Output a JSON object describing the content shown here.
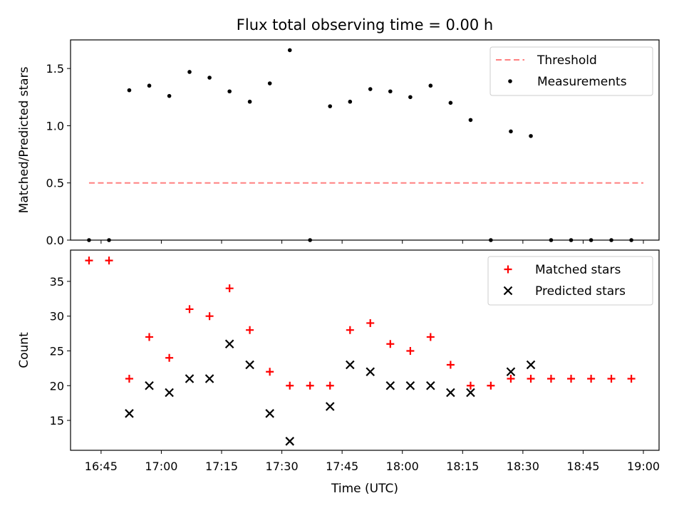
{
  "figure": {
    "title": "Flux total observing time = 0.00 h",
    "xlabel": "Time (UTC)"
  },
  "chart_data": [
    {
      "type": "scatter",
      "ylabel": "Matched/Predicted stars",
      "xlim": [
        16.6233,
        19.065
      ],
      "ylim": [
        0,
        1.75
      ],
      "yticks": [
        0.0,
        0.5,
        1.0,
        1.5
      ],
      "ytick_labels": [
        "0.0",
        "0.5",
        "1.0",
        "1.5"
      ],
      "legend_position": "top-right",
      "series": [
        {
          "name": "Threshold",
          "kind": "line",
          "color": "#ff8080",
          "style": "dashed",
          "x": [
            16.7,
            19.0
          ],
          "y": [
            0.5,
            0.5
          ]
        },
        {
          "name": "Measurements",
          "kind": "points",
          "color": "#000000",
          "x": [
            16.7,
            16.783,
            16.867,
            16.95,
            17.033,
            17.117,
            17.2,
            17.283,
            17.367,
            17.45,
            17.533,
            17.617,
            17.7,
            17.783,
            17.867,
            17.95,
            18.033,
            18.117,
            18.2,
            18.283,
            18.367,
            18.45,
            18.533,
            18.617,
            18.7,
            18.783,
            18.867,
            18.95
          ],
          "y": [
            0,
            0,
            1.31,
            1.35,
            1.26,
            1.47,
            1.42,
            1.3,
            1.21,
            1.37,
            1.66,
            0,
            1.17,
            1.21,
            1.32,
            1.3,
            1.25,
            1.35,
            1.2,
            1.05,
            0,
            0.95,
            0.91,
            0,
            0,
            0,
            0,
            0
          ]
        }
      ]
    },
    {
      "type": "scatter",
      "ylabel": "Count",
      "xlim": [
        16.6233,
        19.065
      ],
      "ylim": [
        10.7,
        39.5
      ],
      "yticks": [
        15,
        20,
        25,
        30,
        35
      ],
      "ytick_labels": [
        "15",
        "20",
        "25",
        "30",
        "35"
      ],
      "xticks": [
        16.75,
        17.0,
        17.25,
        17.5,
        17.75,
        18.0,
        18.25,
        18.5,
        18.75,
        19.0
      ],
      "xtick_labels": [
        "16:45",
        "17:00",
        "17:15",
        "17:30",
        "17:45",
        "18:00",
        "18:15",
        "18:30",
        "18:45",
        "19:00"
      ],
      "legend_position": "top-right",
      "series": [
        {
          "name": "Matched stars",
          "marker": "plus",
          "color": "#ff0000",
          "x": [
            16.7,
            16.783,
            16.867,
            16.95,
            17.033,
            17.117,
            17.2,
            17.283,
            17.367,
            17.45,
            17.533,
            17.617,
            17.7,
            17.783,
            17.867,
            17.95,
            18.033,
            18.117,
            18.2,
            18.283,
            18.367,
            18.45,
            18.533,
            18.617,
            18.7,
            18.783,
            18.867,
            18.95
          ],
          "y": [
            38,
            38,
            21,
            27,
            24,
            31,
            30,
            34,
            28,
            22,
            20,
            20,
            20,
            28,
            29,
            26,
            25,
            27,
            23,
            20,
            20,
            21,
            21,
            21,
            21,
            21,
            21,
            21
          ]
        },
        {
          "name": "Predicted stars",
          "marker": "x",
          "color": "#000000",
          "x": [
            16.867,
            16.95,
            17.033,
            17.117,
            17.2,
            17.283,
            17.367,
            17.45,
            17.533,
            17.7,
            17.783,
            17.867,
            17.95,
            18.033,
            18.117,
            18.2,
            18.283,
            18.45,
            18.533
          ],
          "y": [
            16,
            20,
            19,
            21,
            21,
            26,
            23,
            16,
            12,
            17,
            23,
            22,
            20,
            20,
            20,
            19,
            19,
            22,
            23
          ]
        }
      ]
    }
  ]
}
